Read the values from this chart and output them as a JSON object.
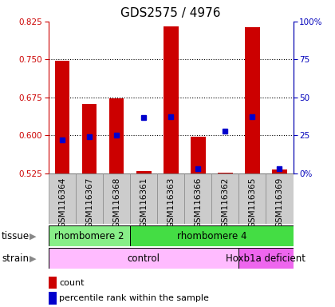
{
  "title": "GDS2575 / 4976",
  "samples": [
    "GSM116364",
    "GSM116367",
    "GSM116368",
    "GSM116361",
    "GSM116363",
    "GSM116366",
    "GSM116362",
    "GSM116365",
    "GSM116369"
  ],
  "bar_values": [
    0.748,
    0.663,
    0.673,
    0.529,
    0.815,
    0.598,
    0.527,
    0.813,
    0.533
  ],
  "bar_bottom": 0.525,
  "blue_values": [
    0.592,
    0.598,
    0.601,
    0.636,
    0.637,
    0.535,
    0.608,
    0.637,
    0.534
  ],
  "ylim_left": [
    0.525,
    0.825
  ],
  "ylim_right": [
    0,
    100
  ],
  "yticks_left": [
    0.525,
    0.6,
    0.675,
    0.75,
    0.825
  ],
  "yticks_right": [
    0,
    25,
    50,
    75,
    100
  ],
  "ytick_labels_right": [
    "0%",
    "25",
    "50",
    "75",
    "100%"
  ],
  "bar_color": "#cc0000",
  "blue_color": "#0000cc",
  "tissue_groups": [
    {
      "label": "rhombomere 2",
      "start": 0,
      "end": 3,
      "color": "#88ee88"
    },
    {
      "label": "rhombomere 4",
      "start": 3,
      "end": 9,
      "color": "#44dd44"
    }
  ],
  "strain_groups": [
    {
      "label": "control",
      "start": 0,
      "end": 7,
      "color": "#ffbbff"
    },
    {
      "label": "Hoxb1a deficient",
      "start": 7,
      "end": 9,
      "color": "#ee66ee"
    }
  ],
  "xlabel_color": "#cc0000",
  "ylabel_right_color": "#0000bb",
  "title_fontsize": 11,
  "tick_fontsize": 7.5,
  "ann_fontsize": 8.5,
  "legend_fontsize": 8
}
